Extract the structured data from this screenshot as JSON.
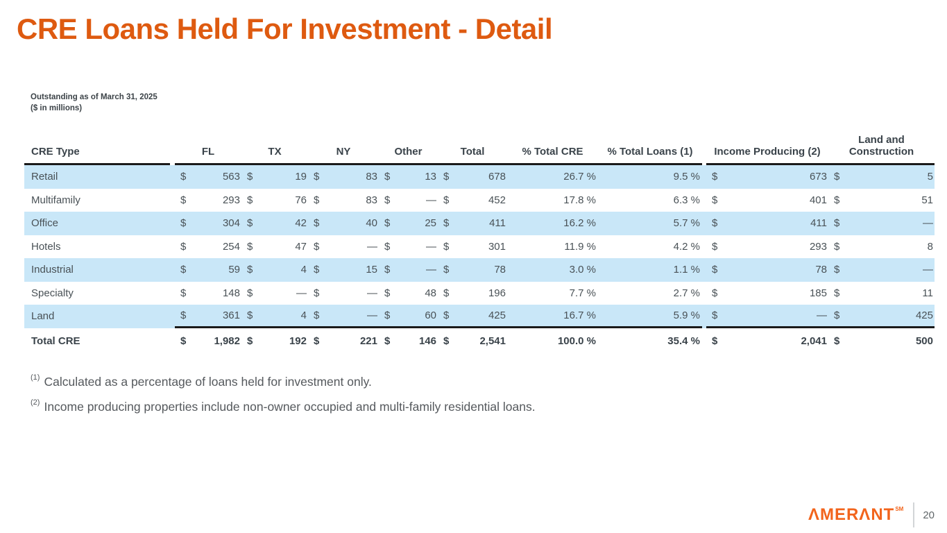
{
  "slide": {
    "title": "CRE Loans Held For Investment - Detail",
    "caption_line1": "Outstanding as of March 31, 2025",
    "caption_line2": "($ in millions)",
    "page_number": "20",
    "logo_text": "AMERANT",
    "logo_trademark": "SM"
  },
  "table": {
    "currency_symbol": "$",
    "headers": {
      "cre_type": "CRE Type",
      "fl": "FL",
      "tx": "TX",
      "ny": "NY",
      "other": "Other",
      "total": "Total",
      "pct_cre": "% Total CRE",
      "pct_loans": "% Total Loans (1)",
      "income_producing": "Income Producing (2)",
      "land_construction": "Land and Construction"
    },
    "rows": [
      {
        "label": "Retail",
        "fl": "563",
        "tx": "19",
        "ny": "83",
        "other": "13",
        "total": "678",
        "pct_cre": "26.7 %",
        "pct_loans": "9.5 %",
        "income_producing": "673",
        "land_construction": "5"
      },
      {
        "label": "Multifamily",
        "fl": "293",
        "tx": "76",
        "ny": "83",
        "other": "—",
        "total": "452",
        "pct_cre": "17.8 %",
        "pct_loans": "6.3 %",
        "income_producing": "401",
        "land_construction": "51"
      },
      {
        "label": "Office",
        "fl": "304",
        "tx": "42",
        "ny": "40",
        "other": "25",
        "total": "411",
        "pct_cre": "16.2 %",
        "pct_loans": "5.7 %",
        "income_producing": "411",
        "land_construction": "—"
      },
      {
        "label": "Hotels",
        "fl": "254",
        "tx": "47",
        "ny": "—",
        "other": "—",
        "total": "301",
        "pct_cre": "11.9 %",
        "pct_loans": "4.2 %",
        "income_producing": "293",
        "land_construction": "8"
      },
      {
        "label": "Industrial",
        "fl": "59",
        "tx": "4",
        "ny": "15",
        "other": "—",
        "total": "78",
        "pct_cre": "3.0 %",
        "pct_loans": "1.1 %",
        "income_producing": "78",
        "land_construction": "—"
      },
      {
        "label": "Specialty",
        "fl": "148",
        "tx": "—",
        "ny": "—",
        "other": "48",
        "total": "196",
        "pct_cre": "7.7 %",
        "pct_loans": "2.7 %",
        "income_producing": "185",
        "land_construction": "11"
      },
      {
        "label": "Land",
        "fl": "361",
        "tx": "4",
        "ny": "—",
        "other": "60",
        "total": "425",
        "pct_cre": "16.7 %",
        "pct_loans": "5.9 %",
        "income_producing": "—",
        "land_construction": "425"
      }
    ],
    "total_row": {
      "label": "Total CRE",
      "fl": "1,982",
      "tx": "192",
      "ny": "221",
      "other": "146",
      "total": "2,541",
      "pct_cre": "100.0 %",
      "pct_loans": "35.4 %",
      "income_producing": "2,041",
      "land_construction": "500"
    }
  },
  "footnotes": [
    {
      "marker": "(1)",
      "text": "Calculated as a percentage of loans held for investment only."
    },
    {
      "marker": "(2)",
      "text": "Income producing properties include non-owner occupied and multi-family residential loans."
    }
  ],
  "colors": {
    "accent_orange": "#de5a10",
    "logo_orange": "#f2641c",
    "row_stripe_blue": "#c9e7f8",
    "rule_black": "#1a1a1a"
  }
}
